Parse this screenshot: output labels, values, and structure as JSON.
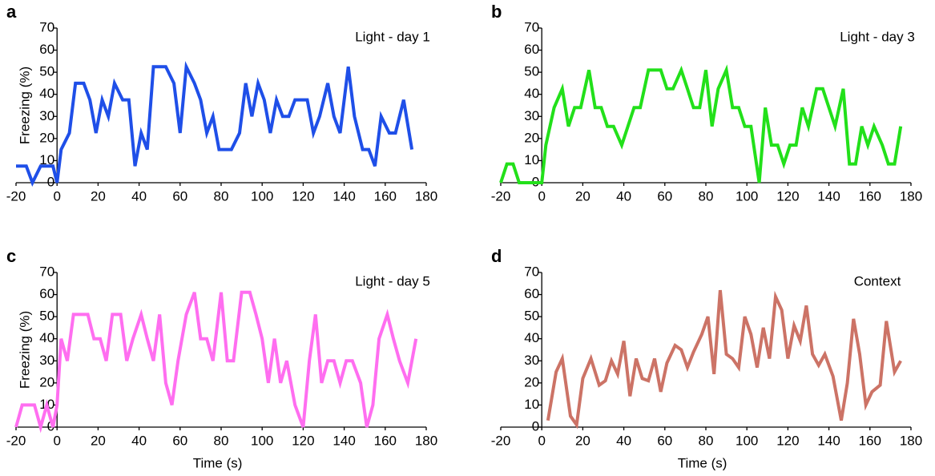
{
  "chart_data": [
    {
      "type": "line",
      "label": "a",
      "annotation": "Light - day 1",
      "ylabel": "Freezing (%)",
      "xlim": [
        -20,
        180
      ],
      "ylim": [
        0,
        70
      ],
      "xticks": [
        -20,
        0,
        20,
        40,
        60,
        80,
        100,
        120,
        140,
        160,
        180
      ],
      "yticks": [
        0,
        10,
        20,
        30,
        40,
        50,
        60,
        70
      ],
      "color": "#1f4fe8",
      "x": [
        -20,
        -15,
        -12,
        -8,
        -2,
        0,
        2,
        6,
        9,
        13,
        16,
        19,
        22,
        25,
        28,
        32,
        35,
        38,
        41,
        44,
        47,
        53,
        57,
        60,
        63,
        67,
        70,
        73,
        76,
        79,
        85,
        89,
        92,
        95,
        98,
        101,
        104,
        107,
        110,
        113,
        116,
        122,
        125,
        128,
        132,
        135,
        138,
        142,
        145,
        149,
        152,
        155,
        158,
        162,
        165,
        169,
        173
      ],
      "values": [
        7.5,
        7.5,
        0,
        7.5,
        7.5,
        0,
        15,
        22.5,
        45,
        45,
        37.5,
        22.5,
        37.5,
        30,
        45,
        37.5,
        37.5,
        7.5,
        22.5,
        15,
        52.5,
        52.5,
        45,
        22.5,
        52.5,
        45,
        37.5,
        22.5,
        30,
        15,
        15,
        22.5,
        45,
        30,
        45,
        37.5,
        22.5,
        37.5,
        30,
        30,
        37.5,
        37.5,
        22.5,
        30,
        45,
        30,
        22.5,
        52.5,
        30,
        15,
        15,
        7.5,
        30,
        22.5,
        22.5,
        37.5,
        15
      ]
    },
    {
      "type": "line",
      "label": "b",
      "annotation": "Light - day 3",
      "xlim": [
        -20,
        180
      ],
      "ylim": [
        0,
        70
      ],
      "xticks": [
        -20,
        0,
        20,
        40,
        60,
        80,
        100,
        120,
        140,
        160,
        180
      ],
      "yticks": [
        0,
        10,
        20,
        30,
        40,
        50,
        60,
        70
      ],
      "color": "#22e01a",
      "x": [
        -20,
        -17,
        -14,
        -11,
        -5,
        0,
        2,
        6,
        10,
        13,
        16,
        19,
        23,
        26,
        29,
        32,
        35,
        39,
        42,
        45,
        48,
        52,
        58,
        61,
        64,
        68,
        71,
        74,
        77,
        80,
        83,
        86,
        90,
        93,
        96,
        99,
        102,
        106,
        109,
        112,
        115,
        118,
        121,
        124,
        127,
        130,
        134,
        137,
        140,
        143,
        147,
        150,
        153,
        156,
        159,
        162,
        166,
        169,
        172,
        175
      ],
      "values": [
        0,
        8.5,
        8.5,
        0,
        0,
        0,
        17,
        34,
        42.5,
        25.5,
        34,
        34,
        51,
        34,
        34,
        25.5,
        25.5,
        17,
        25.5,
        34,
        34,
        51,
        51,
        42.5,
        42.5,
        51,
        42.5,
        34,
        34,
        51,
        25.5,
        42.5,
        51,
        34,
        34,
        25.5,
        25.5,
        0,
        34,
        17,
        17,
        8.5,
        17,
        17,
        34,
        25.5,
        42.5,
        42.5,
        34,
        25.5,
        42.5,
        8.5,
        8.5,
        25.5,
        17,
        25.5,
        17,
        8.5,
        8.5,
        25.5
      ]
    },
    {
      "type": "line",
      "label": "c",
      "annotation": "Light - day 5",
      "ylabel": "Freezing (%)",
      "xlabel": "Time (s)",
      "xlim": [
        -20,
        180
      ],
      "ylim": [
        0,
        70
      ],
      "xticks": [
        -20,
        0,
        20,
        40,
        60,
        80,
        100,
        120,
        140,
        160,
        180
      ],
      "yticks": [
        0,
        10,
        20,
        30,
        40,
        50,
        60,
        70
      ],
      "color": "#ff6ef0",
      "x": [
        -20,
        -17,
        -11,
        -8,
        -5,
        -2,
        0,
        2,
        5,
        8,
        15,
        18,
        21,
        24,
        27,
        31,
        34,
        37,
        41,
        44,
        47,
        50,
        53,
        56,
        59,
        63,
        67,
        70,
        73,
        76,
        80,
        83,
        86,
        90,
        94,
        97,
        100,
        103,
        106,
        109,
        112,
        116,
        120,
        123,
        126,
        129,
        132,
        135,
        138,
        141,
        144,
        148,
        151,
        154,
        157,
        161,
        164,
        167,
        171,
        175
      ],
      "values": [
        0,
        10,
        10,
        0,
        10,
        0,
        10,
        40,
        30,
        51,
        51,
        40,
        40,
        30,
        51,
        51,
        30,
        40,
        51,
        40,
        30,
        51,
        20,
        10,
        30,
        51,
        61,
        40,
        40,
        30,
        61,
        30,
        30,
        61,
        61,
        51,
        40,
        20,
        40,
        20,
        30,
        10,
        0,
        30,
        51,
        20,
        30,
        30,
        20,
        30,
        30,
        20,
        0,
        10,
        40,
        51,
        40,
        30,
        20,
        40
      ]
    },
    {
      "type": "line",
      "label": "d",
      "annotation": "Context",
      "xlabel": "Time (s)",
      "xlim": [
        -20,
        180
      ],
      "ylim": [
        0,
        70
      ],
      "xticks": [
        -20,
        0,
        20,
        40,
        60,
        80,
        100,
        120,
        140,
        160,
        180
      ],
      "yticks": [
        0,
        10,
        20,
        30,
        40,
        50,
        60,
        70
      ],
      "color": "#cc7366",
      "x": [
        3,
        7,
        10,
        14,
        17,
        20,
        24,
        28,
        31,
        34,
        37,
        40,
        43,
        46,
        49,
        52,
        55,
        58,
        61,
        65,
        68,
        71,
        74,
        78,
        81,
        84,
        87,
        90,
        93,
        96,
        99,
        102,
        105,
        108,
        111,
        114,
        117,
        120,
        123,
        126,
        129,
        132,
        135,
        138,
        142,
        146,
        149,
        152,
        155,
        158,
        161,
        165,
        168,
        172,
        175
      ],
      "values": [
        3,
        25,
        31,
        5,
        1,
        22,
        31,
        19,
        21,
        30,
        24,
        39,
        14,
        31,
        22,
        21,
        31,
        16,
        29,
        37,
        35,
        27,
        34,
        42,
        50,
        24,
        62,
        33,
        31,
        27,
        50,
        42,
        27,
        45,
        31,
        59,
        53,
        31,
        46,
        39,
        55,
        33,
        28,
        33,
        23,
        3,
        20,
        49,
        33,
        10,
        16,
        19,
        48,
        25,
        30
      ]
    }
  ]
}
